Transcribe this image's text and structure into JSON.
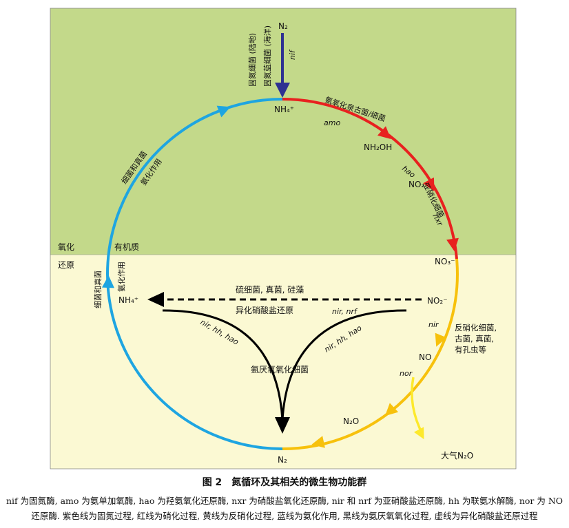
{
  "diagram": {
    "zones": {
      "oxidized": "氧化",
      "reduced": "还原"
    },
    "colors": {
      "upper_bg": "#c3d98a",
      "lower_bg": "#fbf9d3",
      "fixation": "#2e3192",
      "nitrification": "#e8211f",
      "denitrification": "#f7c10c",
      "ammonification": "#1ea5e1",
      "anammox": "#000000",
      "atmosphere": "#fde92c"
    },
    "nodes": {
      "n2_top": "N₂",
      "nh4_top": "NH₄⁺",
      "nh2oh": "NH₂OH",
      "no2_upper": "NO₂⁻",
      "no3": "NO₃⁻",
      "no2_lower": "NO₂⁻",
      "no": "NO",
      "n2o": "N₂O",
      "n2_bottom": "N₂",
      "nh4_left": "NH₄⁺",
      "n2o_atm": "大气N₂O",
      "organic": "有机质"
    },
    "enzymes": {
      "nif": "nif",
      "amo": "amo",
      "hao": "hao",
      "nxr": "nxr",
      "nir": "nir",
      "nor": "nor",
      "nir_nrf": "nir, nrf",
      "nir_hh_hao_left": "nir, hh, hao",
      "nir_hh_hao_right": "nir, hh, hao"
    },
    "groups": {
      "fix_land": "固氮细菌 (陆地)",
      "fix_sea": "固氮蓝细菌 (海洋)",
      "aob": "氨氧化泉古菌/细菌",
      "nob": "亚硝化细菌",
      "denit_l1": "反硝化细菌,",
      "denit_l2": "古菌, 真菌,",
      "denit_l3": "有孔虫等",
      "ammon_up_l1": "细菌和真菌",
      "ammon_up_l2": "氨化作用",
      "ammon_low_l1": "细菌和真菌",
      "ammon_low_l2": "氨化作用",
      "dnra_l1": "硫细菌, 真菌, 硅藻",
      "dnra_l2": "异化硝酸盐还原",
      "anammox": "氨厌氧氧化细菌"
    }
  },
  "caption": {
    "title": "图 2　氮循环及其相关的微生物功能群",
    "line1": "nif 为固氮酶, amo 为氨单加氧酶, hao 为羟氨氧化还原酶, nxr 为硝酸盐氧化还原酶, nir 和 nrf 为亚硝酸盐还原酶, hh 为联氨水解酶, nor 为 NO",
    "line2": "还原酶. 紫色线为固氮过程, 红线为硝化过程, 黄线为反硝化过程, 蓝线为氨化作用, 黑线为氨厌氧氧化过程, 虚线为异化硝酸盐还原过程"
  }
}
